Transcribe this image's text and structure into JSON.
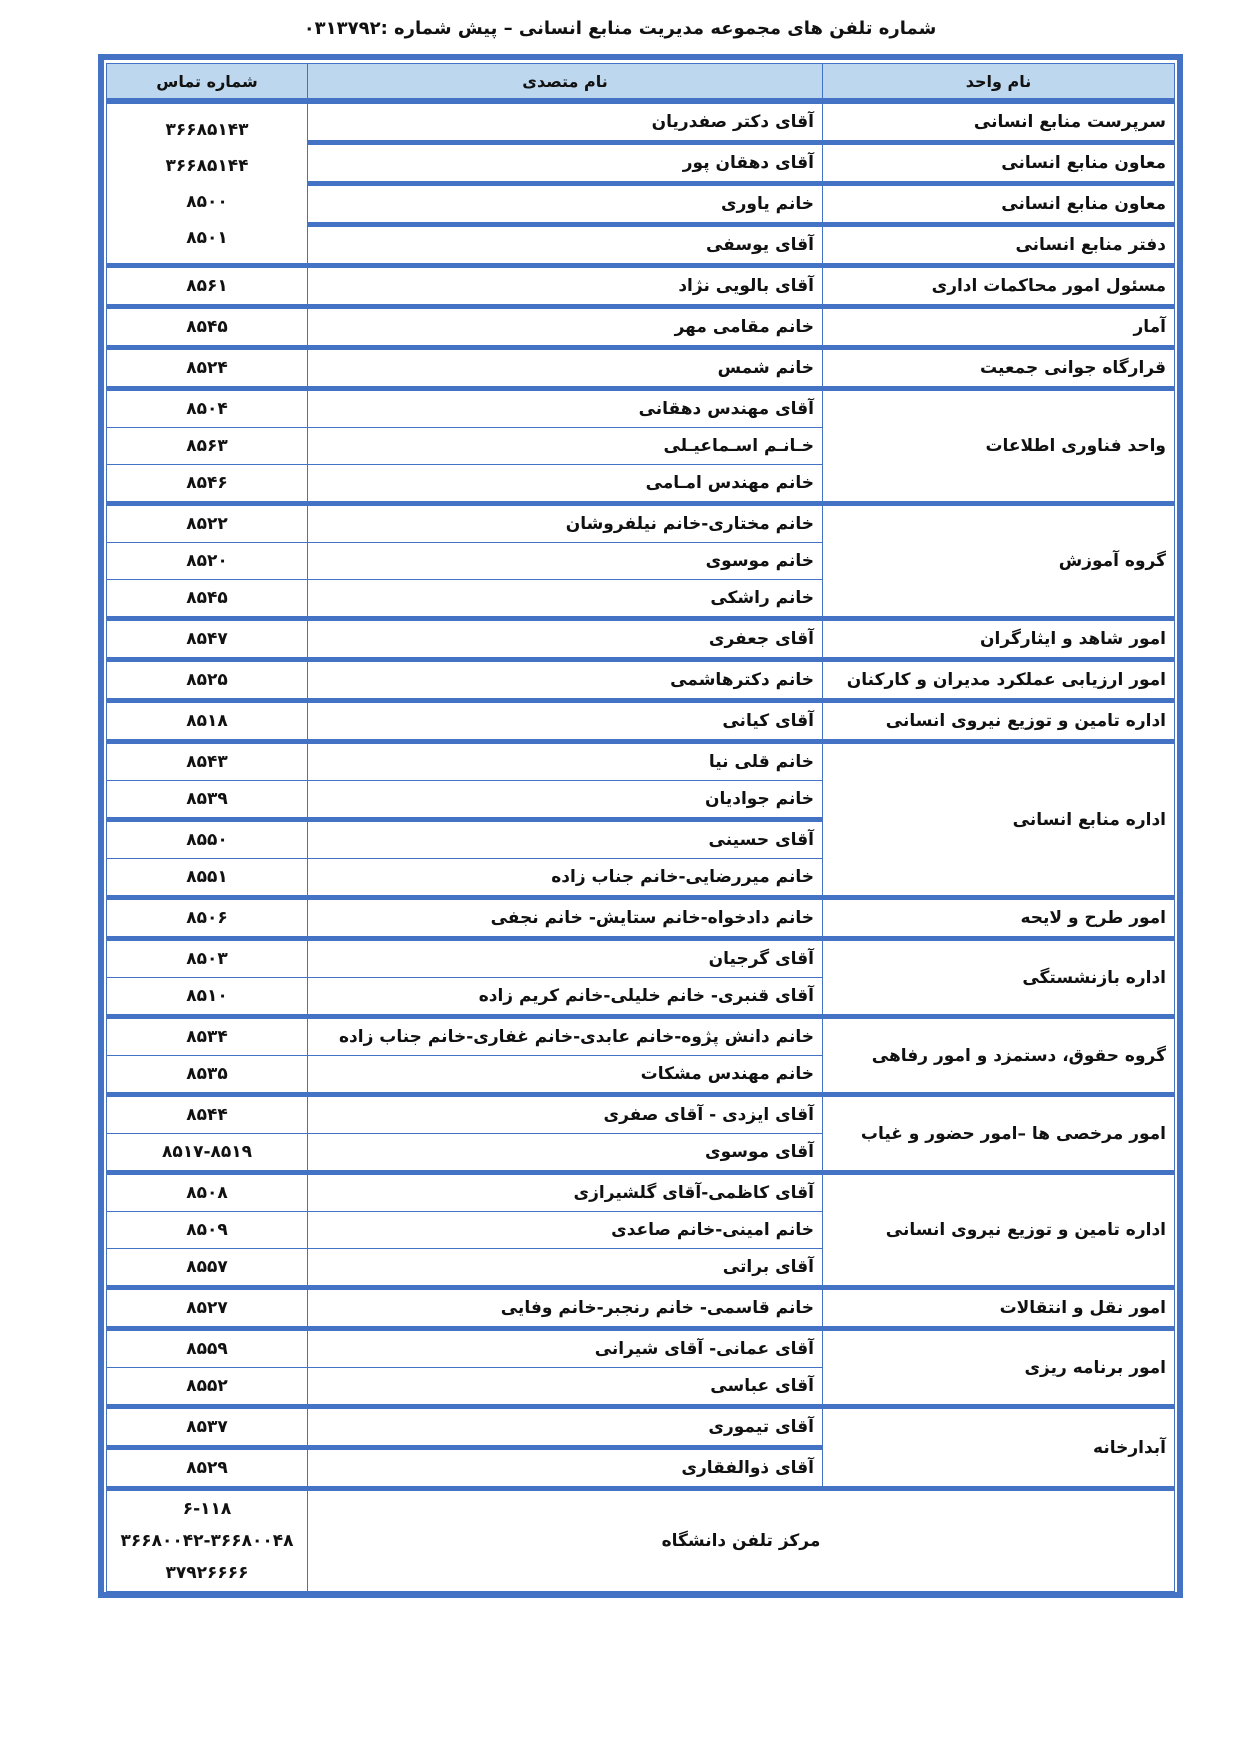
{
  "title": "شماره تلفن های مجموعه  مدیریت منابع انسانی – پیش شماره :۰۳۱۳۷۹۲",
  "headers": {
    "unit": "نام واحد",
    "name": "نام متصدی",
    "phone": "شماره  تماس"
  },
  "colors": {
    "border": "#4472c4",
    "header_fill": "#bdd7ee"
  },
  "groups": [
    {
      "units": [
        "سرپرست منابع انسانی",
        "معاون منابع انسانی",
        "معاون منابع انسانی",
        "دفتر منابع انسانی"
      ],
      "names": [
        "آقای دکتر صفدریان",
        "آقای دهقان پور",
        "خانم  یاوری",
        "آقای یوسفی"
      ],
      "phones": [
        "۳۶۶۸۵۱۴۳",
        "۳۶۶۸۵۱۴۴",
        "۸۵۰۰",
        "۸۵۰۱"
      ]
    },
    {
      "units": [
        "مسئول امور محاکمات اداری"
      ],
      "names": [
        "آقای بالویی نژاد"
      ],
      "phones": [
        "۸۵۶۱"
      ]
    },
    {
      "units": [
        "آمار"
      ],
      "names": [
        "خانم مقامی مهر"
      ],
      "phones": [
        "۸۵۴۵"
      ]
    },
    {
      "units": [
        "قرارگاه جوانی جمعیت"
      ],
      "names": [
        "خانم شمس"
      ],
      "phones": [
        "۸۵۲۴"
      ]
    },
    {
      "units": [
        "واحد فناوری اطلاعات"
      ],
      "names": [
        "آقای مهندس دهقانی",
        "خـانـم اسـماعیـلی",
        "خانم مهندس امـامی"
      ],
      "phones": [
        "۸۵۰۴",
        "۸۵۶۳",
        "۸۵۴۶"
      ]
    },
    {
      "units": [
        "گروه آموزش"
      ],
      "names": [
        "خانم مختاری-خانم نیلفروشان",
        "خانم موسوی",
        "خانم راشکی"
      ],
      "phones": [
        "۸۵۲۲",
        "۸۵۲۰",
        "۸۵۴۵"
      ]
    },
    {
      "units": [
        "امور شاهد و ایثارگران"
      ],
      "names": [
        "آقای جعفری"
      ],
      "phones": [
        "۸۵۴۷"
      ]
    },
    {
      "units": [
        "امور ارزیابی عملکرد مدیران و کارکنان"
      ],
      "names": [
        "خانم دکترهاشمی"
      ],
      "phones": [
        "۸۵۲۵"
      ]
    },
    {
      "units": [
        "اداره تامین و توزیع نیروی انسانی"
      ],
      "names": [
        "آقای کیانی"
      ],
      "phones": [
        "۸۵۱۸"
      ]
    },
    {
      "units": [
        "اداره منابع انسانی"
      ],
      "names": [
        "خانم قلی نیا",
        "خانم جوادیان",
        "آقای حسینی",
        "خانم میررضایی-خانم جناب زاده"
      ],
      "phones": [
        "۸۵۴۳",
        "۸۵۳۹",
        "۸۵۵۰",
        "۸۵۵۱"
      ]
    },
    {
      "units": [
        "امور طرح و لایحه"
      ],
      "names": [
        "خانم دادخواه-خانم ستایش- خانم نجفی"
      ],
      "phones": [
        "۸۵۰۶"
      ]
    },
    {
      "units": [
        "اداره بازنشستگی"
      ],
      "names": [
        "آقای گرجیان",
        "آقای قنبری- خانم خلیلی-خانم کریم زاده"
      ],
      "phones": [
        "۸۵۰۳",
        "۸۵۱۰"
      ]
    },
    {
      "units": [
        "گروه حقوق، دستمزد و امور رفاهی"
      ],
      "names": [
        "خانم دانش پژوه-خانم عابدی-خانم غفاری-خانم جناب زاده",
        "خانم مهندس مشکات"
      ],
      "phones": [
        "۸۵۳۴",
        "۸۵۳۵"
      ]
    },
    {
      "units": [
        "امور مرخصی ها –امور حضور و غیاب"
      ],
      "names": [
        "آقای ایزدی  -  آقای صفری",
        "آقای موسوی"
      ],
      "phones": [
        "۸۵۴۴",
        "۸۵۱۷-۸۵۱۹"
      ]
    },
    {
      "units": [
        "اداره تامین و توزیع نیروی انسانی"
      ],
      "names": [
        "آقای کاظمی-آقای گلشیرازی",
        "خانم امینی-خانم صاعدی",
        "آقای براتی"
      ],
      "phones": [
        "۸۵۰۸",
        "۸۵۰۹",
        "۸۵۵۷"
      ]
    },
    {
      "units": [
        "امور نقل و انتقالات"
      ],
      "names": [
        "خانم قاسمی- خانم رنجبر-خانم وفایی"
      ],
      "phones": [
        "۸۵۲۷"
      ]
    },
    {
      "units": [
        "امور برنامه ریزی"
      ],
      "names": [
        "آقای عمانی- آقای شیرانی",
        "آقای عباسی"
      ],
      "phones": [
        "۸۵۵۹",
        "۸۵۵۲"
      ]
    },
    {
      "units": [
        "آبدارخانه"
      ],
      "names": [
        "آقای تیموری",
        "آقای ذوالفقاری"
      ],
      "phones": [
        "۸۵۳۷",
        "۸۵۲۹"
      ]
    }
  ],
  "center": {
    "label": "مرکز تلفن دانشگاه",
    "phones": [
      "۶-۱۱۸",
      "۳۶۶۸۰۰۴۲-۳۶۶۸۰۰۴۸",
      "۳۷۹۲۶۶۶۶"
    ]
  }
}
